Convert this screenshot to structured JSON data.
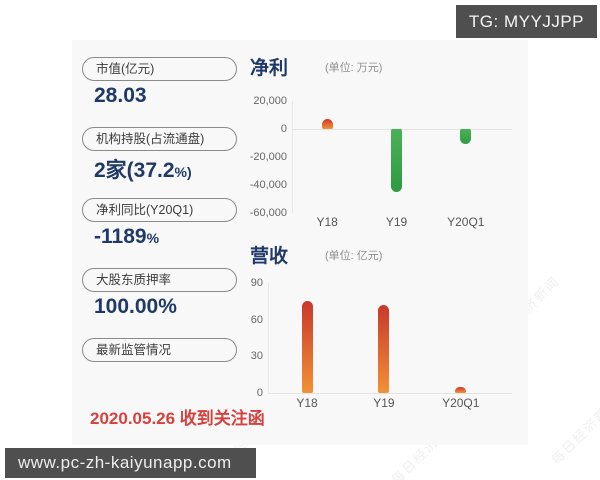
{
  "header": {
    "tag": "TG: MYYJJPP"
  },
  "footer": {
    "url": "www.pc-zh-kaiyunapp.com"
  },
  "watermark": {
    "text": "每日经济新闻"
  },
  "panels": [
    {
      "label": "市值(亿元)",
      "value": "28.03",
      "suffix": ""
    },
    {
      "label": "机构持股(占流通盘)",
      "value": "2家(37.2",
      "suffix": "%)"
    },
    {
      "label": "净利同比(Y20Q1)",
      "value": "-1189",
      "suffix": "%"
    },
    {
      "label": "大股东质押率",
      "value": "100.00%",
      "suffix": ""
    },
    {
      "label": "最新监管情况",
      "value": "",
      "suffix": ""
    }
  ],
  "event": {
    "text": "2020.05.26 收到关注函"
  },
  "chart_data": [
    {
      "type": "bar",
      "title": "净利",
      "unit_label": "(单位: 万元)",
      "categories": [
        "Y18",
        "Y19",
        "Y20Q1"
      ],
      "values": [
        7000,
        -45000,
        -11000
      ],
      "ylim": [
        -60000,
        20000
      ],
      "yticks": [
        20000,
        0,
        -20000,
        -40000,
        -60000
      ],
      "ytick_labels": [
        "20,000",
        "0",
        "-20,000",
        "-40,000",
        "-60,000"
      ],
      "bar_colors": [
        "orange",
        "green",
        "green"
      ],
      "grid": "zero-line-only",
      "legend": "none"
    },
    {
      "type": "bar",
      "title": "营收",
      "unit_label": "(单位: 亿元)",
      "categories": [
        "Y18",
        "Y19",
        "Y20Q1"
      ],
      "values": [
        75,
        72,
        5
      ],
      "ylim": [
        0,
        90
      ],
      "yticks": [
        90,
        60,
        30,
        0
      ],
      "ytick_labels": [
        "90",
        "60",
        "30",
        "0"
      ],
      "bar_colors": [
        "orange",
        "orange",
        "orange"
      ],
      "grid": "baseline-only",
      "legend": "none"
    }
  ],
  "theme": {
    "navy": "#1f3a68",
    "red": "#d6413d",
    "badge_bg": "#4f4f4f",
    "card_bg": "#f8f8f8",
    "bar_orange_top": "#c9382b",
    "bar_orange_bottom": "#f29136",
    "bar_green_top": "#4ab156",
    "bar_green_bottom": "#2f9a43"
  }
}
